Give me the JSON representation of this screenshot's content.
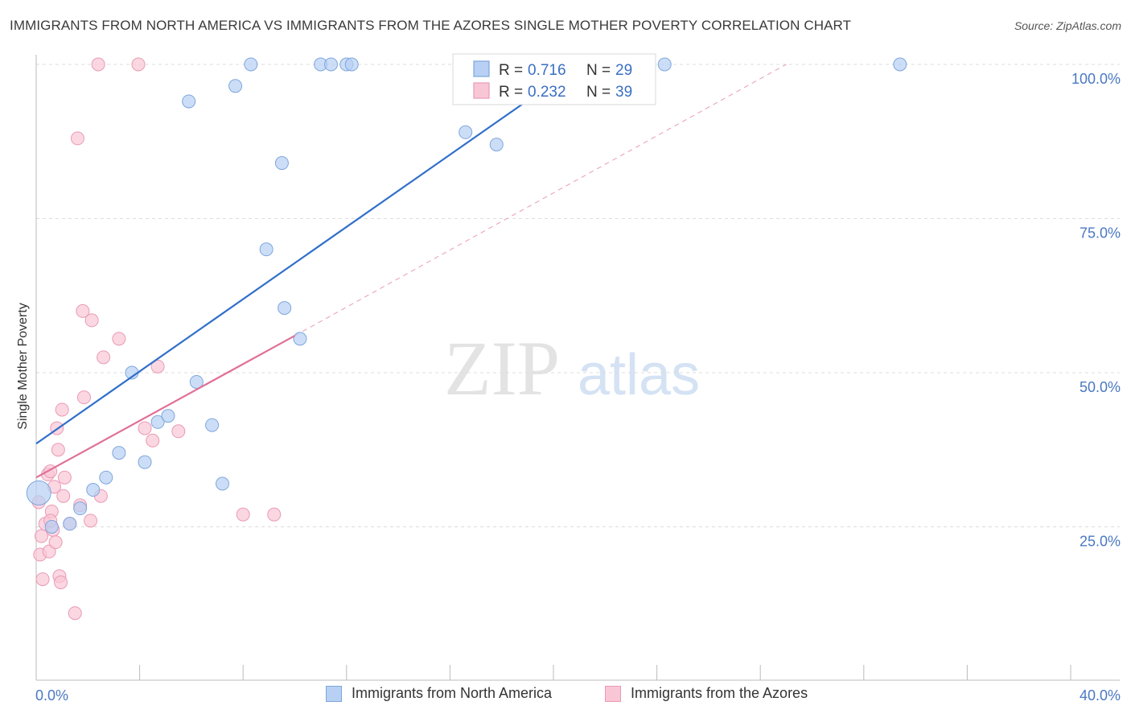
{
  "header": {
    "title": "IMMIGRANTS FROM NORTH AMERICA VS IMMIGRANTS FROM THE AZORES SINGLE MOTHER POVERTY CORRELATION CHART",
    "source": "Source: ZipAtlas.com"
  },
  "watermark": {
    "zip": "ZIP",
    "atlas": "atlas"
  },
  "colors": {
    "blue_fill": "#b7d0f3",
    "blue_stroke": "#7ea6dc",
    "blue_line": "#2f6fc9",
    "pink_fill": "#f9c6d6",
    "pink_stroke": "#e99ab5",
    "pink_line": "#e07098",
    "grid": "#dcdcdc",
    "tick_text": "#4a78c2"
  },
  "legend": {
    "rows": [
      {
        "r_label": "R =",
        "r_value": "0.716",
        "n_label": "N =",
        "n_value": "29"
      },
      {
        "r_label": "R =",
        "r_value": "0.232",
        "n_label": "N =",
        "n_value": "39"
      }
    ]
  },
  "bottom_legend": {
    "series1": "Immigrants from North America",
    "series2": "Immigrants from the Azores"
  },
  "chart_data": {
    "type": "scatter",
    "title": "IMMIGRANTS FROM NORTH AMERICA VS IMMIGRANTS FROM THE AZORES SINGLE MOTHER POVERTY CORRELATION CHART",
    "xlabel": "",
    "ylabel": "Single Mother Poverty",
    "xlim": [
      0,
      40
    ],
    "ylim": [
      0,
      102
    ],
    "x_tick_labels": [
      {
        "value": 0,
        "label": "0.0%"
      },
      {
        "value": 40,
        "label": "40.0%"
      }
    ],
    "y_tick_labels": [
      {
        "value": 25,
        "label": "25.0%"
      },
      {
        "value": 50,
        "label": "50.0%"
      },
      {
        "value": 75,
        "label": "75.0%"
      },
      {
        "value": 100,
        "label": "100.0%"
      }
    ],
    "y_gridlines": [
      25,
      50,
      75,
      100
    ],
    "x_minor_ticks": [
      4,
      8,
      12,
      16,
      20,
      24,
      28,
      32,
      36
    ],
    "series": [
      {
        "name": "Immigrants from North America",
        "color": "#b7d0f3",
        "R": 0.716,
        "N": 29,
        "trend": {
          "x0": 0,
          "y0": 38.5,
          "x1": 21,
          "y1": 100
        },
        "points": [
          {
            "x": 0.1,
            "y": 30.5,
            "big": true
          },
          {
            "x": 0.6,
            "y": 25.0
          },
          {
            "x": 1.3,
            "y": 25.5
          },
          {
            "x": 1.7,
            "y": 28.0
          },
          {
            "x": 2.2,
            "y": 31.0
          },
          {
            "x": 2.7,
            "y": 33.0
          },
          {
            "x": 3.2,
            "y": 37.0
          },
          {
            "x": 3.7,
            "y": 50.0
          },
          {
            "x": 4.2,
            "y": 35.5
          },
          {
            "x": 4.7,
            "y": 42.0
          },
          {
            "x": 5.1,
            "y": 43.0
          },
          {
            "x": 5.9,
            "y": 94.0
          },
          {
            "x": 6.2,
            "y": 48.5
          },
          {
            "x": 6.8,
            "y": 41.5
          },
          {
            "x": 7.2,
            "y": 32.0
          },
          {
            "x": 7.7,
            "y": 96.5
          },
          {
            "x": 8.3,
            "y": 100.0
          },
          {
            "x": 8.9,
            "y": 70.0
          },
          {
            "x": 9.5,
            "y": 84.0
          },
          {
            "x": 9.6,
            "y": 60.5
          },
          {
            "x": 10.2,
            "y": 55.5
          },
          {
            "x": 11.0,
            "y": 100.0
          },
          {
            "x": 11.4,
            "y": 100.0
          },
          {
            "x": 12.0,
            "y": 100.0
          },
          {
            "x": 12.2,
            "y": 100.0
          },
          {
            "x": 16.6,
            "y": 89.0
          },
          {
            "x": 17.8,
            "y": 87.0
          },
          {
            "x": 24.3,
            "y": 100.0
          },
          {
            "x": 33.4,
            "y": 100.0
          }
        ]
      },
      {
        "name": "Immigrants from the Azores",
        "color": "#f9c6d6",
        "R": 0.232,
        "N": 39,
        "trend": {
          "x0": 0,
          "y0": 33.0,
          "x1": 10,
          "y1": 56.0
        },
        "trend_extended": {
          "x0": 10,
          "y0": 56.0,
          "x1": 29,
          "y1": 100
        },
        "points": [
          {
            "x": 0.1,
            "y": 29.0
          },
          {
            "x": 0.15,
            "y": 20.5
          },
          {
            "x": 0.2,
            "y": 23.5
          },
          {
            "x": 0.25,
            "y": 16.5
          },
          {
            "x": 0.35,
            "y": 25.5
          },
          {
            "x": 0.45,
            "y": 33.5
          },
          {
            "x": 0.5,
            "y": 21.0
          },
          {
            "x": 0.55,
            "y": 34.0
          },
          {
            "x": 0.6,
            "y": 27.5
          },
          {
            "x": 0.65,
            "y": 24.5
          },
          {
            "x": 0.7,
            "y": 31.5
          },
          {
            "x": 0.75,
            "y": 22.5
          },
          {
            "x": 0.8,
            "y": 41.0
          },
          {
            "x": 0.85,
            "y": 37.5
          },
          {
            "x": 0.9,
            "y": 17.0
          },
          {
            "x": 0.95,
            "y": 16.0
          },
          {
            "x": 1.0,
            "y": 44.0
          },
          {
            "x": 1.05,
            "y": 30.0
          },
          {
            "x": 1.1,
            "y": 33.0
          },
          {
            "x": 1.3,
            "y": 25.5
          },
          {
            "x": 1.5,
            "y": 11.0
          },
          {
            "x": 1.6,
            "y": 88.0
          },
          {
            "x": 1.7,
            "y": 28.5
          },
          {
            "x": 1.8,
            "y": 60.0
          },
          {
            "x": 1.85,
            "y": 46.0
          },
          {
            "x": 2.1,
            "y": 26.0
          },
          {
            "x": 2.15,
            "y": 58.5
          },
          {
            "x": 2.4,
            "y": 100.0
          },
          {
            "x": 2.5,
            "y": 30.0
          },
          {
            "x": 2.6,
            "y": 52.5
          },
          {
            "x": 3.2,
            "y": 55.5
          },
          {
            "x": 3.95,
            "y": 100.0
          },
          {
            "x": 4.2,
            "y": 41.0
          },
          {
            "x": 4.5,
            "y": 39.0
          },
          {
            "x": 4.7,
            "y": 51.0
          },
          {
            "x": 5.5,
            "y": 40.5
          },
          {
            "x": 8.0,
            "y": 27.0
          },
          {
            "x": 9.2,
            "y": 27.0
          },
          {
            "x": 0.55,
            "y": 26.0
          }
        ]
      }
    ]
  }
}
